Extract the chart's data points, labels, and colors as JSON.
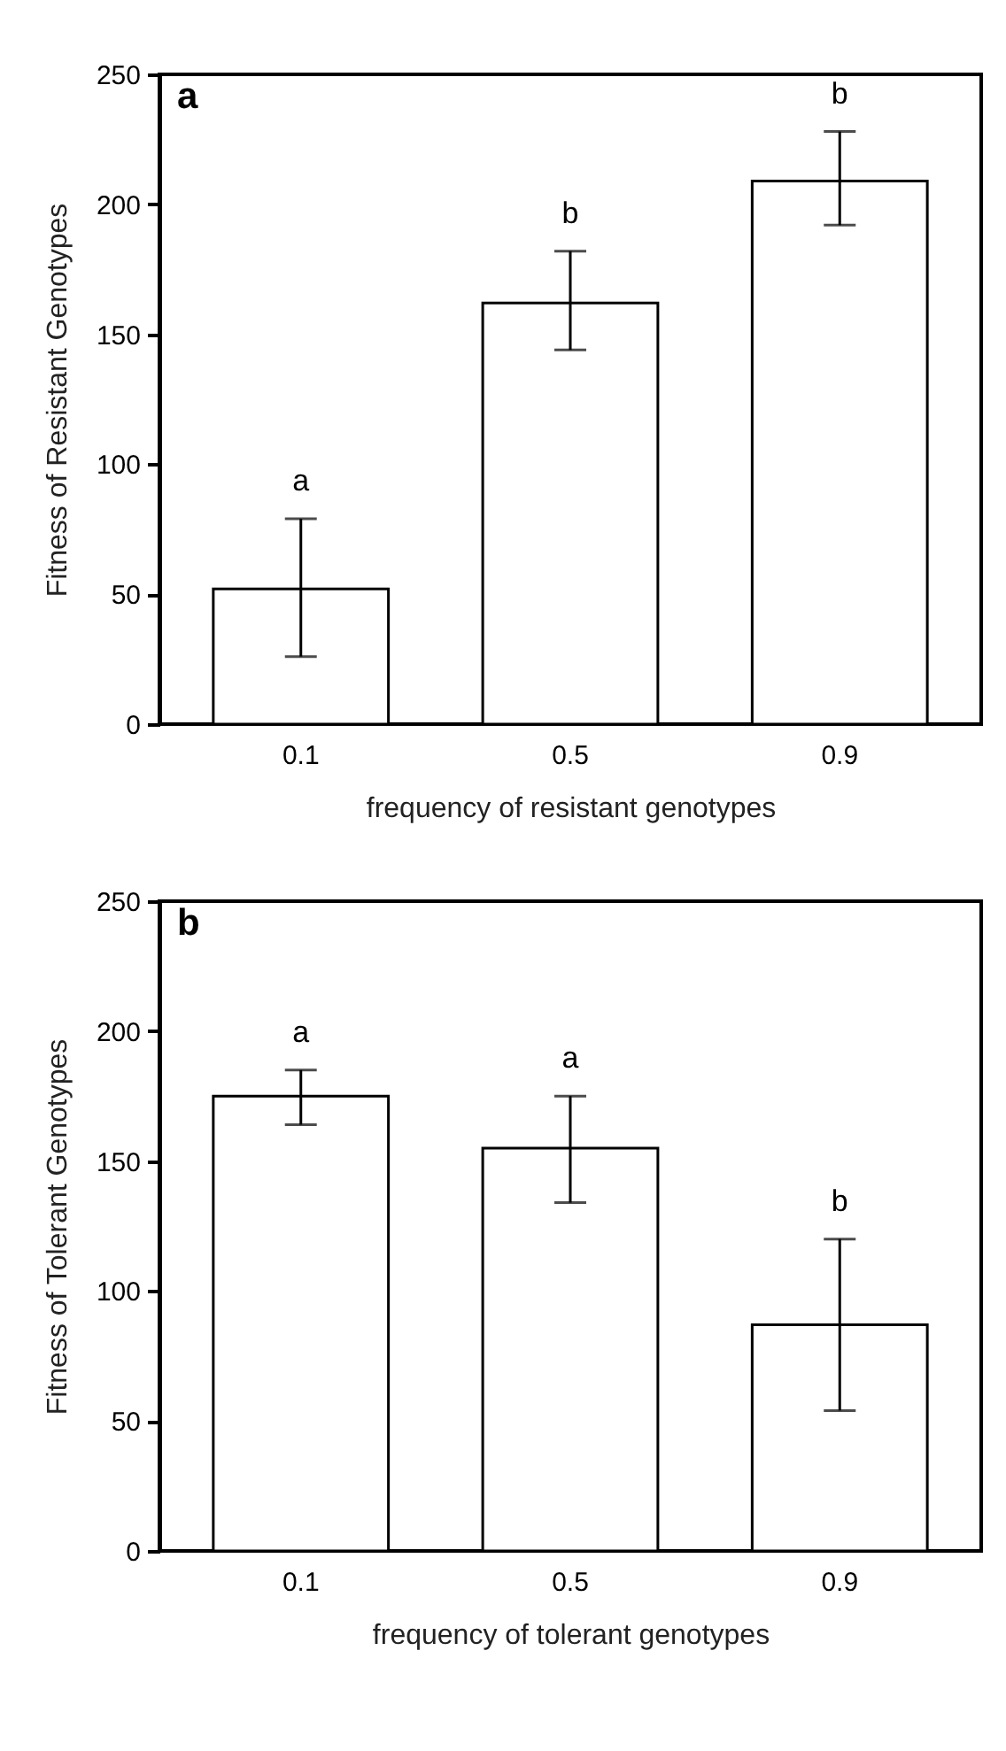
{
  "chart_data": [
    {
      "type": "bar",
      "title": "a",
      "xlabel": "frequency of resistant genotypes",
      "ylabel": "Fitness of Resistant Genotypes",
      "categories": [
        "0.1",
        "0.5",
        "0.9"
      ],
      "values": [
        52,
        162,
        209
      ],
      "color": "#ffffff",
      "errors": [
        [
          26,
          79
        ],
        [
          144,
          182
        ],
        [
          192,
          228
        ]
      ],
      "ylim": [
        0,
        250
      ],
      "yticks": [
        0,
        50,
        100,
        150,
        200,
        250
      ],
      "grid": false,
      "annotations": [
        {
          "text": "a",
          "x": "0.1",
          "y": 79
        },
        {
          "text": "b",
          "x": "0.5",
          "y": 182
        },
        {
          "text": "b",
          "x": "0.9",
          "y": 228
        }
      ]
    },
    {
      "type": "bar",
      "title": "b",
      "xlabel": "frequency of tolerant genotypes",
      "ylabel": "Fitness of Tolerant Genotypes",
      "categories": [
        "0.1",
        "0.5",
        "0.9"
      ],
      "values": [
        175,
        155,
        87
      ],
      "color": "#ffffff",
      "errors": [
        [
          164,
          185
        ],
        [
          134,
          175
        ],
        [
          54,
          120
        ]
      ],
      "ylim": [
        0,
        250
      ],
      "yticks": [
        0,
        50,
        100,
        150,
        200,
        250
      ],
      "grid": false,
      "annotations": [
        {
          "text": "a",
          "x": "0.1",
          "y": 185
        },
        {
          "text": "a",
          "x": "0.5",
          "y": 175
        },
        {
          "text": "b",
          "x": "0.9",
          "y": 120
        }
      ]
    }
  ]
}
